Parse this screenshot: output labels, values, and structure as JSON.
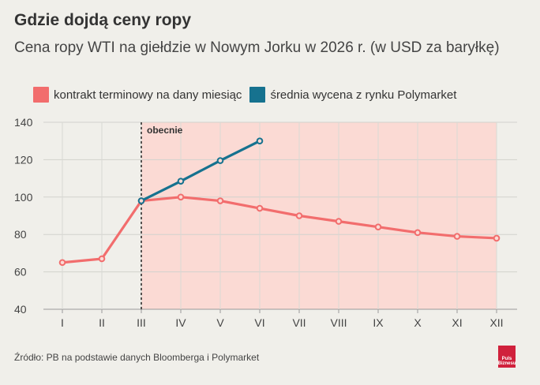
{
  "title": "Gdzie dojdą ceny ropy",
  "subtitle": "Cena ropy WTI na giełdzie w Nowym Jorku w 2026 r. (w USD za baryłkę)",
  "source": "Źródło: PB na podstawie danych Bloomberga i Polymarket",
  "logo": {
    "line1": "Puls",
    "line2": "Biznesu"
  },
  "colors": {
    "futures": "#f26d6d",
    "polymarket": "#16728f",
    "shade": "#fbdad4",
    "background": "#f0efea"
  },
  "chart_data": {
    "type": "line",
    "categories": [
      "I",
      "II",
      "III",
      "IV",
      "V",
      "VI",
      "VII",
      "VIII",
      "IX",
      "X",
      "XI",
      "XII"
    ],
    "ylim": [
      40,
      140
    ],
    "yticks": [
      40,
      60,
      80,
      100,
      120,
      140
    ],
    "grid": true,
    "legend_position": "top-left",
    "series": [
      {
        "name": "kontrakt terminowy na dany miesiąc",
        "values": [
          65,
          67,
          98,
          100,
          98,
          94,
          90,
          87,
          84,
          81,
          79,
          78
        ]
      },
      {
        "name": "średnia wycena z rynku Polymarket",
        "values": [
          null,
          null,
          98,
          108.5,
          119.5,
          130,
          null,
          null,
          null,
          null,
          null,
          null
        ]
      }
    ],
    "annotations": [
      {
        "category": "III",
        "label": "obecnie",
        "style": "dashed-vertical-line"
      }
    ],
    "shaded_from_category": "III"
  }
}
